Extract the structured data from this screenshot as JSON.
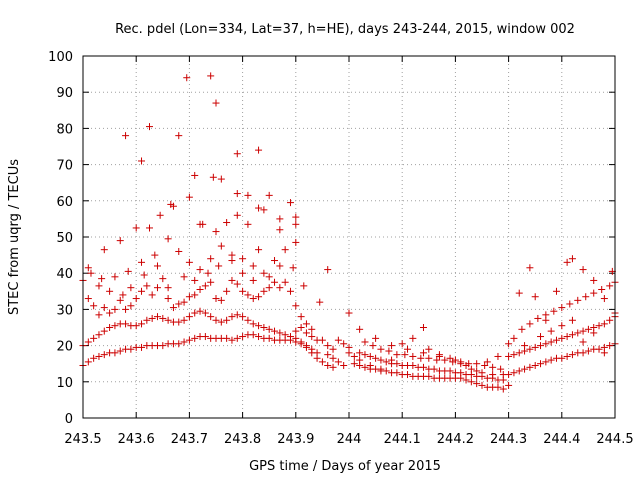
{
  "chart_data": {
    "type": "scatter",
    "title": "Rec. pdel (Lon=334, Lat=37, h=HE), days 243-244, 2015, window 002",
    "xlabel": "GPS time / Days of year 2015",
    "ylabel": "STEC from uqrg / TECUs",
    "xlim": [
      243.5,
      244.5
    ],
    "ylim": [
      0,
      100
    ],
    "xticks": [
      243.5,
      243.6,
      243.7,
      243.8,
      243.9,
      244,
      244.1,
      244.2,
      244.3,
      244.4,
      244.5
    ],
    "xtick_labels": [
      "243.5",
      "243.6",
      "243.7",
      "243.8",
      "243.9",
      "244",
      "244.1",
      "244.2",
      "244.3",
      "244.4",
      "244.5"
    ],
    "yticks": [
      0,
      10,
      20,
      30,
      40,
      50,
      60,
      70,
      80,
      90,
      100
    ],
    "ytick_labels": [
      "0",
      "10",
      "20",
      "30",
      "40",
      "50",
      "60",
      "70",
      "80",
      "90",
      "100"
    ],
    "grid": true,
    "marker": "plus",
    "color": "#cc0000",
    "points": [
      [
        243.5,
        14.5
      ],
      [
        243.51,
        15.5
      ],
      [
        243.52,
        16.5
      ],
      [
        243.53,
        17.0
      ],
      [
        243.54,
        17.5
      ],
      [
        243.55,
        18.0
      ],
      [
        243.56,
        18.0
      ],
      [
        243.57,
        18.5
      ],
      [
        243.58,
        19.0
      ],
      [
        243.59,
        19.0
      ],
      [
        243.6,
        19.5
      ],
      [
        243.61,
        19.5
      ],
      [
        243.62,
        20.0
      ],
      [
        243.63,
        20.0
      ],
      [
        243.64,
        20.0
      ],
      [
        243.65,
        20.0
      ],
      [
        243.66,
        20.5
      ],
      [
        243.67,
        20.5
      ],
      [
        243.68,
        20.5
      ],
      [
        243.69,
        21.0
      ],
      [
        243.7,
        21.5
      ],
      [
        243.71,
        22.0
      ],
      [
        243.72,
        22.5
      ],
      [
        243.73,
        22.5
      ],
      [
        243.74,
        22.0
      ],
      [
        243.75,
        22.0
      ],
      [
        243.76,
        22.0
      ],
      [
        243.77,
        22.0
      ],
      [
        243.78,
        21.5
      ],
      [
        243.79,
        22.0
      ],
      [
        243.8,
        22.5
      ],
      [
        243.81,
        23.0
      ],
      [
        243.82,
        23.0
      ],
      [
        243.83,
        22.5
      ],
      [
        243.84,
        22.0
      ],
      [
        243.85,
        22.0
      ],
      [
        243.86,
        21.5
      ],
      [
        243.87,
        21.5
      ],
      [
        243.88,
        21.5
      ],
      [
        243.89,
        21.5
      ],
      [
        243.9,
        21.0
      ],
      [
        243.91,
        20.5
      ],
      [
        243.92,
        19.5
      ],
      [
        243.93,
        18.0
      ],
      [
        243.94,
        16.5
      ],
      [
        243.95,
        15.5
      ],
      [
        243.96,
        14.5
      ],
      [
        243.97,
        14.0
      ],
      [
        243.5,
        20.0
      ],
      [
        243.51,
        21.0
      ],
      [
        243.52,
        22.0
      ],
      [
        243.53,
        23.0
      ],
      [
        243.54,
        24.0
      ],
      [
        243.55,
        25.0
      ],
      [
        243.56,
        25.5
      ],
      [
        243.57,
        26.0
      ],
      [
        243.58,
        26.0
      ],
      [
        243.59,
        25.5
      ],
      [
        243.6,
        25.5
      ],
      [
        243.61,
        26.0
      ],
      [
        243.62,
        27.0
      ],
      [
        243.63,
        27.5
      ],
      [
        243.64,
        28.0
      ],
      [
        243.65,
        27.5
      ],
      [
        243.66,
        27.0
      ],
      [
        243.67,
        26.5
      ],
      [
        243.68,
        26.5
      ],
      [
        243.69,
        27.0
      ],
      [
        243.7,
        28.0
      ],
      [
        243.71,
        29.0
      ],
      [
        243.72,
        29.5
      ],
      [
        243.73,
        29.0
      ],
      [
        243.74,
        28.0
      ],
      [
        243.75,
        27.0
      ],
      [
        243.76,
        26.5
      ],
      [
        243.77,
        27.0
      ],
      [
        243.78,
        28.0
      ],
      [
        243.79,
        28.5
      ],
      [
        243.8,
        28.0
      ],
      [
        243.81,
        27.0
      ],
      [
        243.82,
        26.0
      ],
      [
        243.83,
        25.5
      ],
      [
        243.84,
        25.0
      ],
      [
        243.85,
        24.5
      ],
      [
        243.86,
        24.0
      ],
      [
        243.87,
        23.5
      ],
      [
        243.88,
        23.0
      ],
      [
        243.89,
        22.5
      ],
      [
        243.9,
        22.0
      ],
      [
        243.91,
        21.0
      ],
      [
        243.92,
        20.0
      ],
      [
        243.93,
        19.0
      ],
      [
        243.94,
        18.0
      ],
      [
        243.5,
        38.0
      ],
      [
        243.51,
        33.0
      ],
      [
        243.52,
        31.0
      ],
      [
        243.53,
        28.5
      ],
      [
        243.54,
        30.5
      ],
      [
        243.55,
        29.0
      ],
      [
        243.56,
        30.0
      ],
      [
        243.57,
        32.5
      ],
      [
        243.58,
        30.0
      ],
      [
        243.59,
        31.0
      ],
      [
        243.6,
        33.0
      ],
      [
        243.61,
        35.0
      ],
      [
        243.62,
        36.5
      ],
      [
        243.63,
        34.0
      ],
      [
        243.64,
        36.0
      ],
      [
        243.65,
        38.5
      ],
      [
        243.66,
        33.0
      ],
      [
        243.67,
        30.5
      ],
      [
        243.68,
        31.5
      ],
      [
        243.69,
        32.0
      ],
      [
        243.7,
        33.5
      ],
      [
        243.71,
        34.0
      ],
      [
        243.72,
        35.5
      ],
      [
        243.73,
        36.5
      ],
      [
        243.74,
        37.5
      ],
      [
        243.75,
        33.0
      ],
      [
        243.76,
        32.5
      ],
      [
        243.77,
        35.0
      ],
      [
        243.78,
        38.0
      ],
      [
        243.79,
        37.0
      ],
      [
        243.8,
        35.0
      ],
      [
        243.81,
        34.0
      ],
      [
        243.82,
        33.0
      ],
      [
        243.83,
        33.5
      ],
      [
        243.84,
        35.0
      ],
      [
        243.85,
        36.0
      ],
      [
        243.86,
        37.5
      ],
      [
        243.87,
        36.0
      ],
      [
        243.88,
        37.5
      ],
      [
        243.89,
        35.0
      ],
      [
        243.9,
        31.0
      ],
      [
        243.91,
        28.0
      ],
      [
        243.92,
        26.0
      ],
      [
        243.93,
        24.5
      ],
      [
        243.51,
        41.5
      ],
      [
        243.535,
        38.5
      ],
      [
        243.56,
        39.0
      ],
      [
        243.585,
        40.5
      ],
      [
        243.61,
        43.0
      ],
      [
        243.635,
        45.0
      ],
      [
        243.66,
        49.5
      ],
      [
        243.68,
        46.0
      ],
      [
        243.7,
        43.0
      ],
      [
        243.72,
        41.0
      ],
      [
        243.74,
        44.0
      ],
      [
        243.76,
        47.5
      ],
      [
        243.78,
        45.0
      ],
      [
        243.8,
        44.0
      ],
      [
        243.82,
        42.0
      ],
      [
        243.84,
        40.0
      ],
      [
        243.86,
        43.5
      ],
      [
        243.88,
        46.5
      ],
      [
        243.9,
        48.5
      ],
      [
        243.54,
        46.5
      ],
      [
        243.57,
        49.0
      ],
      [
        243.6,
        52.5
      ],
      [
        243.625,
        52.5
      ],
      [
        243.645,
        56.0
      ],
      [
        243.67,
        58.5
      ],
      [
        243.7,
        61.0
      ],
      [
        243.725,
        53.5
      ],
      [
        243.75,
        51.5
      ],
      [
        243.77,
        54.0
      ],
      [
        243.79,
        56.0
      ],
      [
        243.81,
        61.5
      ],
      [
        243.83,
        58.0
      ],
      [
        243.85,
        61.5
      ],
      [
        243.87,
        55.0
      ],
      [
        243.89,
        59.5
      ],
      [
        243.9,
        55.5
      ],
      [
        243.58,
        78.0
      ],
      [
        243.61,
        71.0
      ],
      [
        243.625,
        80.5
      ],
      [
        243.665,
        59.0
      ],
      [
        243.68,
        78.0
      ],
      [
        243.695,
        94.0
      ],
      [
        243.71,
        67.0
      ],
      [
        243.74,
        94.5
      ],
      [
        243.75,
        87.0
      ],
      [
        243.745,
        66.5
      ],
      [
        243.79,
        73.0
      ],
      [
        243.83,
        74.0
      ],
      [
        243.84,
        57.5
      ],
      [
        243.87,
        52.0
      ],
      [
        243.9,
        53.5
      ],
      [
        243.72,
        53.5
      ],
      [
        243.76,
        66.0
      ],
      [
        243.79,
        62.0
      ],
      [
        243.81,
        53.5
      ],
      [
        243.83,
        46.5
      ],
      [
        243.515,
        40.0
      ],
      [
        243.53,
        36.5
      ],
      [
        243.55,
        35.0
      ],
      [
        243.575,
        34.0
      ],
      [
        243.59,
        36.0
      ],
      [
        243.615,
        39.5
      ],
      [
        243.64,
        42.0
      ],
      [
        243.66,
        36.0
      ],
      [
        243.69,
        39.0
      ],
      [
        243.71,
        38.0
      ],
      [
        243.735,
        40.0
      ],
      [
        243.755,
        42.0
      ],
      [
        243.78,
        43.5
      ],
      [
        243.8,
        40.0
      ],
      [
        243.82,
        38.0
      ],
      [
        243.85,
        39.0
      ],
      [
        243.87,
        42.0
      ],
      [
        243.895,
        41.5
      ],
      [
        243.915,
        36.5
      ],
      [
        243.945,
        32.0
      ],
      [
        243.96,
        41.0
      ],
      [
        243.9,
        24.0
      ],
      [
        243.91,
        25.0
      ],
      [
        243.92,
        23.5
      ],
      [
        243.93,
        22.5
      ],
      [
        243.94,
        21.5
      ],
      [
        243.95,
        21.5
      ],
      [
        243.96,
        20.0
      ],
      [
        243.97,
        19.0
      ],
      [
        243.98,
        21.5
      ],
      [
        243.99,
        20.5
      ],
      [
        244.0,
        19.5
      ],
      [
        243.96,
        17.5
      ],
      [
        243.97,
        16.5
      ],
      [
        243.98,
        15.5
      ],
      [
        243.99,
        14.5
      ],
      [
        244.01,
        15.0
      ],
      [
        244.02,
        14.5
      ],
      [
        244.03,
        14.0
      ],
      [
        244.04,
        13.5
      ],
      [
        244.05,
        13.5
      ],
      [
        244.06,
        13.0
      ],
      [
        244.07,
        13.0
      ],
      [
        244.08,
        12.5
      ],
      [
        244.09,
        12.5
      ],
      [
        244.1,
        12.0
      ],
      [
        244.11,
        12.0
      ],
      [
        244.12,
        11.5
      ],
      [
        244.13,
        11.5
      ],
      [
        244.14,
        11.5
      ],
      [
        244.15,
        11.5
      ],
      [
        244.16,
        11.0
      ],
      [
        244.17,
        11.0
      ],
      [
        244.18,
        11.0
      ],
      [
        244.19,
        11.0
      ],
      [
        244.2,
        11.0
      ],
      [
        244.21,
        11.0
      ],
      [
        244.22,
        10.5
      ],
      [
        244.23,
        10.0
      ],
      [
        244.24,
        9.5
      ],
      [
        244.25,
        9.0
      ],
      [
        244.26,
        8.5
      ],
      [
        244.27,
        8.5
      ],
      [
        244.28,
        8.5
      ],
      [
        244.29,
        8.0
      ],
      [
        244.3,
        9.0
      ],
      [
        244.02,
        18.0
      ],
      [
        244.03,
        17.5
      ],
      [
        244.04,
        17.0
      ],
      [
        244.05,
        16.5
      ],
      [
        244.06,
        16.0
      ],
      [
        244.07,
        15.5
      ],
      [
        244.08,
        15.0
      ],
      [
        244.09,
        15.0
      ],
      [
        244.1,
        14.5
      ],
      [
        244.11,
        14.5
      ],
      [
        244.12,
        14.5
      ],
      [
        244.13,
        14.0
      ],
      [
        244.14,
        14.0
      ],
      [
        244.15,
        13.5
      ],
      [
        244.16,
        13.5
      ],
      [
        244.17,
        13.0
      ],
      [
        244.18,
        13.0
      ],
      [
        244.19,
        13.0
      ],
      [
        244.2,
        12.5
      ],
      [
        244.21,
        12.5
      ],
      [
        244.22,
        12.0
      ],
      [
        244.23,
        12.0
      ],
      [
        244.24,
        11.5
      ],
      [
        244.25,
        11.5
      ],
      [
        244.26,
        11.0
      ],
      [
        244.27,
        11.0
      ],
      [
        244.28,
        10.5
      ],
      [
        244.29,
        10.5
      ],
      [
        244.03,
        21.0
      ],
      [
        244.045,
        20.0
      ],
      [
        244.06,
        19.0
      ],
      [
        244.075,
        18.5
      ],
      [
        244.09,
        17.5
      ],
      [
        244.105,
        17.5
      ],
      [
        244.12,
        17.0
      ],
      [
        244.135,
        16.5
      ],
      [
        244.15,
        16.5
      ],
      [
        244.165,
        16.0
      ],
      [
        244.18,
        16.0
      ],
      [
        244.195,
        15.5
      ],
      [
        244.21,
        15.5
      ],
      [
        244.225,
        15.0
      ],
      [
        244.24,
        15.0
      ],
      [
        244.255,
        14.5
      ],
      [
        244.27,
        14.0
      ],
      [
        244.285,
        13.5
      ],
      [
        244.0,
        18.0
      ],
      [
        244.01,
        17.0
      ],
      [
        244.02,
        16.0
      ],
      [
        244.04,
        14.5
      ],
      [
        244.06,
        13.5
      ],
      [
        244.08,
        16.0
      ],
      [
        244.1,
        20.5
      ],
      [
        244.12,
        22.0
      ],
      [
        244.14,
        25.0
      ],
      [
        244.15,
        19.0
      ],
      [
        244.17,
        17.5
      ],
      [
        244.19,
        16.5
      ],
      [
        244.21,
        15.0
      ],
      [
        244.23,
        13.5
      ],
      [
        244.25,
        12.5
      ],
      [
        244.27,
        12.0
      ],
      [
        244.29,
        12.0
      ],
      [
        244.0,
        29.0
      ],
      [
        244.02,
        24.5
      ],
      [
        244.05,
        22.0
      ],
      [
        244.08,
        20.0
      ],
      [
        244.11,
        19.0
      ],
      [
        244.14,
        18.0
      ],
      [
        244.17,
        17.0
      ],
      [
        244.2,
        16.0
      ],
      [
        244.22,
        14.5
      ],
      [
        244.24,
        13.0
      ],
      [
        244.26,
        15.5
      ],
      [
        244.28,
        17.0
      ],
      [
        244.3,
        20.5
      ],
      [
        244.3,
        12.0
      ],
      [
        244.31,
        12.5
      ],
      [
        244.32,
        13.0
      ],
      [
        244.33,
        13.5
      ],
      [
        244.34,
        14.0
      ],
      [
        244.35,
        14.5
      ],
      [
        244.36,
        15.0
      ],
      [
        244.37,
        15.5
      ],
      [
        244.38,
        16.0
      ],
      [
        244.39,
        16.5
      ],
      [
        244.4,
        16.5
      ],
      [
        244.41,
        17.0
      ],
      [
        244.42,
        17.5
      ],
      [
        244.43,
        18.0
      ],
      [
        244.44,
        18.0
      ],
      [
        244.45,
        18.5
      ],
      [
        244.46,
        19.0
      ],
      [
        244.47,
        19.0
      ],
      [
        244.48,
        19.5
      ],
      [
        244.49,
        20.0
      ],
      [
        244.5,
        20.5
      ],
      [
        244.3,
        17.0
      ],
      [
        244.31,
        17.5
      ],
      [
        244.32,
        18.0
      ],
      [
        244.33,
        18.5
      ],
      [
        244.34,
        19.0
      ],
      [
        244.35,
        19.5
      ],
      [
        244.36,
        20.0
      ],
      [
        244.37,
        20.5
      ],
      [
        244.38,
        21.0
      ],
      [
        244.39,
        21.5
      ],
      [
        244.4,
        22.0
      ],
      [
        244.41,
        22.5
      ],
      [
        244.42,
        23.0
      ],
      [
        244.43,
        23.5
      ],
      [
        244.44,
        24.0
      ],
      [
        244.45,
        24.5
      ],
      [
        244.46,
        25.0
      ],
      [
        244.47,
        25.5
      ],
      [
        244.48,
        26.0
      ],
      [
        244.49,
        27.0
      ],
      [
        244.5,
        28.0
      ],
      [
        244.31,
        22.0
      ],
      [
        244.325,
        24.5
      ],
      [
        244.34,
        26.0
      ],
      [
        244.355,
        27.5
      ],
      [
        244.37,
        28.5
      ],
      [
        244.385,
        29.5
      ],
      [
        244.4,
        30.5
      ],
      [
        244.415,
        31.5
      ],
      [
        244.43,
        32.5
      ],
      [
        244.445,
        33.5
      ],
      [
        244.46,
        34.5
      ],
      [
        244.475,
        35.5
      ],
      [
        244.49,
        36.5
      ],
      [
        244.5,
        37.5
      ],
      [
        244.32,
        34.5
      ],
      [
        244.34,
        41.5
      ],
      [
        244.35,
        33.5
      ],
      [
        244.37,
        27.0
      ],
      [
        244.39,
        35.0
      ],
      [
        244.41,
        43.0
      ],
      [
        244.42,
        44.0
      ],
      [
        244.44,
        41.0
      ],
      [
        244.46,
        38.0
      ],
      [
        244.48,
        33.0
      ],
      [
        244.495,
        40.5
      ],
      [
        244.5,
        29.0
      ],
      [
        244.33,
        20.0
      ],
      [
        244.36,
        22.5
      ],
      [
        244.38,
        24.0
      ],
      [
        244.4,
        25.5
      ],
      [
        244.42,
        27.0
      ],
      [
        244.44,
        21.0
      ],
      [
        244.46,
        23.5
      ],
      [
        244.48,
        18.0
      ]
    ]
  }
}
